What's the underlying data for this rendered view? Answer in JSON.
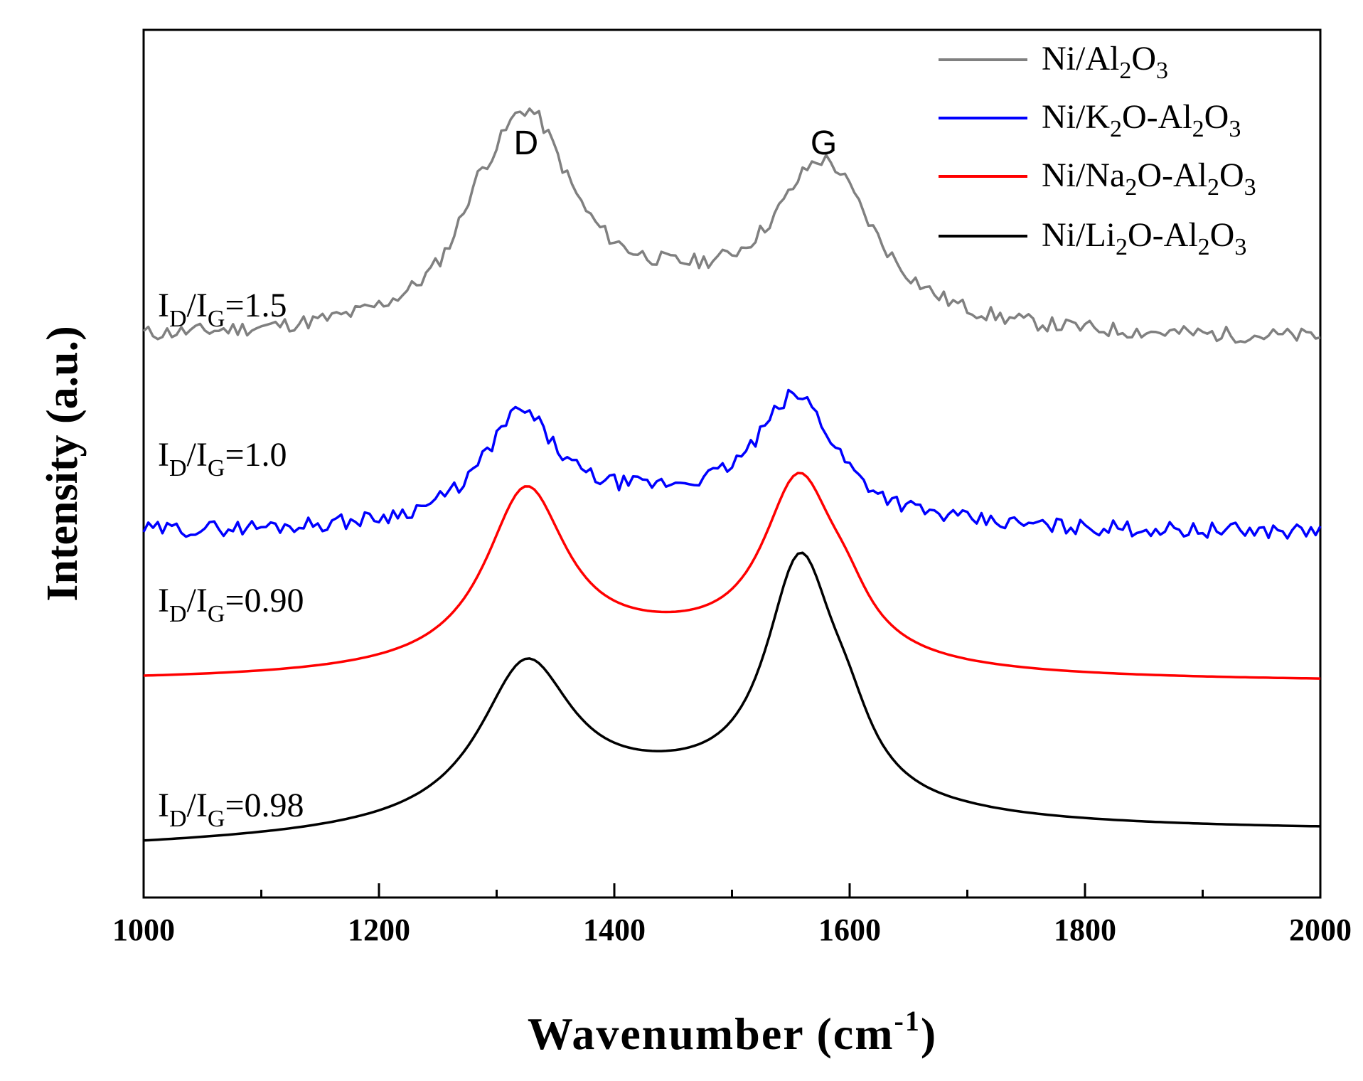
{
  "chart_data": {
    "type": "line",
    "xlabel": "Wavenumber (cm",
    "xlabel_sup": "-1",
    "xlabel_close": ")",
    "ylabel": "Intensity (a.u.)",
    "xlim": [
      1000,
      2000
    ],
    "x_ticks": [
      1000,
      1200,
      1400,
      1600,
      1800,
      2000
    ],
    "x_tick_labels": [
      "1000",
      "1200",
      "1400",
      "1600",
      "1800",
      "2000"
    ],
    "y_ticks_shown": false,
    "legend_position": "top-right",
    "peak_labels": [
      {
        "text": "D",
        "x": 1325
      },
      {
        "text": "G",
        "x": 1578
      }
    ],
    "series": [
      {
        "name": "Ni/Al2O3",
        "legend_parts": [
          "Ni/Al",
          "2",
          "O",
          "3"
        ],
        "color": "#808080",
        "ratio_label": {
          "main1": "I",
          "sub1": "D",
          "main2": "/I",
          "sub2": "G",
          "value": "=1.5"
        },
        "baseline": 5.45,
        "noise": 0.09,
        "seed": 11,
        "peaks": [
          {
            "center": 1325,
            "height": 2.35,
            "width": 48
          },
          {
            "center": 1282,
            "height": 0.35,
            "width": 18
          },
          {
            "center": 1578,
            "height": 1.85,
            "width": 52
          },
          {
            "center": 1440,
            "height": 0.35,
            "width": 110
          }
        ]
      },
      {
        "name": "Ni/K2O-Al2O3",
        "legend_parts": [
          "Ni/K",
          "2",
          "O-Al",
          "2",
          "O",
          "3"
        ],
        "color": "#0000ff",
        "ratio_label": {
          "main1": "I",
          "sub1": "D",
          "main2": "/I",
          "sub2": "G",
          "value": "=1.0"
        },
        "baseline": 3.25,
        "noise": 0.09,
        "seed": 29,
        "peaks": [
          {
            "center": 1320,
            "height": 1.2,
            "width": 38
          },
          {
            "center": 1555,
            "height": 1.4,
            "width": 42
          },
          {
            "center": 1435,
            "height": 0.3,
            "width": 120
          }
        ]
      },
      {
        "name": "Ni/Na2O-Al2O3",
        "legend_parts": [
          "Ni/Na",
          "2",
          "O-Al",
          "2",
          "O",
          "3"
        ],
        "color": "#ff0000",
        "ratio_label": {
          "main1": "I",
          "sub1": "D",
          "main2": "/I",
          "sub2": "G",
          "value": "=0.90"
        },
        "baseline": 1.55,
        "noise": 0.0,
        "seed": 3,
        "peaks": [
          {
            "center": 1325,
            "height": 1.95,
            "width": 42
          },
          {
            "center": 1557,
            "height": 2.0,
            "width": 38
          },
          {
            "center": 1597,
            "height": 0.35,
            "width": 25
          },
          {
            "center": 1440,
            "height": 0.38,
            "width": 150
          }
        ]
      },
      {
        "name": "Ni/Li2O-Al2O3",
        "legend_parts": [
          "Ni/Li",
          "2",
          "O-Al",
          "2",
          "O",
          "3"
        ],
        "color": "#000000",
        "ratio_label": {
          "main1": "I",
          "sub1": "D",
          "main2": "/I",
          "sub2": "G",
          "value": "=0.98"
        },
        "baseline": -0.35,
        "baseline_slope_end": 0.2,
        "noise": 0.0,
        "seed": 5,
        "peaks": [
          {
            "center": 1325,
            "height": 1.7,
            "width": 48
          },
          {
            "center": 1558,
            "height": 2.7,
            "width": 36
          },
          {
            "center": 1598,
            "height": 0.5,
            "width": 26
          },
          {
            "center": 1440,
            "height": 0.5,
            "width": 150
          }
        ]
      }
    ]
  }
}
